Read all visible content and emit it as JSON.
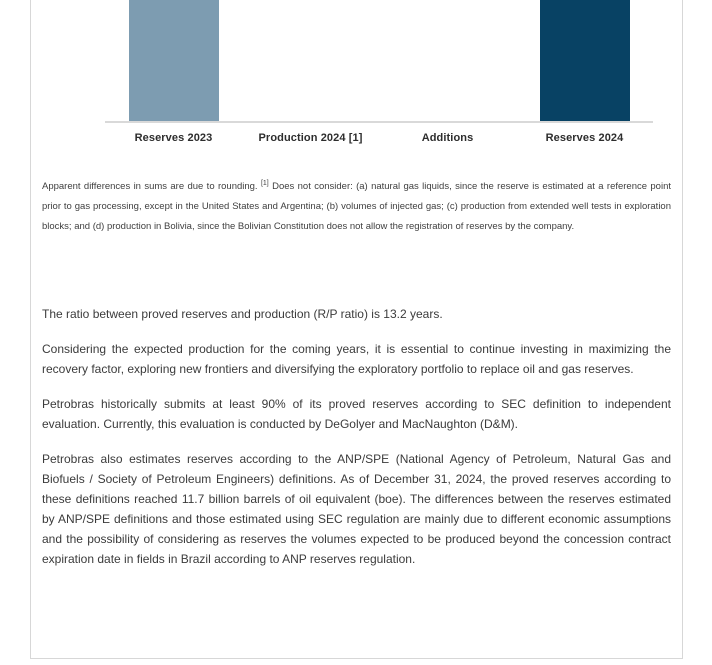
{
  "chart_data": {
    "type": "bar",
    "subtype": "waterfall",
    "title": "",
    "xlabel": "",
    "ylabel": "",
    "categories": [
      "Reserves 2023",
      "Production 2024 [1]",
      "Additions",
      "Reserves 2024"
    ],
    "values": [
      null,
      null,
      null,
      null
    ],
    "value_labels_visible": false,
    "cropped_at_top": true,
    "axis_color": "#d9d9d9",
    "bars": [
      {
        "category": "Reserves 2023",
        "visible": true,
        "color": "#7d9cb1"
      },
      {
        "category": "Production 2024 [1]",
        "visible": false,
        "color": ""
      },
      {
        "category": "Additions",
        "visible": false,
        "color": ""
      },
      {
        "category": "Reserves 2024",
        "visible": true,
        "color": "#084264"
      }
    ]
  },
  "footnote": {
    "lead": "Apparent differences in sums are due to rounding.",
    "marker": "[1]",
    "body": "Does not consider: (a) natural gas liquids, since the reserve is estimated at a reference point prior to gas processing, except in the United States and Argentina; (b) volumes of injected gas; (c) production from extended well tests in exploration blocks; and (d) production in Bolivia, since the Bolivian Constitution does not allow the registration of reserves by the company."
  },
  "paragraphs": [
    "The ratio between proved reserves and production (R/P ratio) is 13.2 years.",
    "Considering the expected production for the coming years, it is essential to continue investing in maximizing the recovery factor, exploring new frontiers and diversifying the exploratory portfolio to replace oil and gas reserves.",
    "Petrobras historically submits at least 90% of its proved reserves according to SEC definition to independent evaluation. Currently, this evaluation is conducted by DeGolyer and MacNaughton (D&M).",
    "Petrobras also estimates reserves according to the ANP/SPE (National Agency of Petroleum, Natural Gas and Biofuels / Society of Petroleum Engineers) definitions. As of December 31, 2024, the proved reserves according to these definitions reached 11.7 billion barrels of oil equivalent (boe). The differences between the reserves estimated by ANP/SPE definitions and those estimated using SEC regulation are mainly due to different economic assumptions and the possibility of considering as reserves the volumes expected to be produced beyond the concession contract expiration date in fields in Brazil according to ANP reserves regulation."
  ]
}
